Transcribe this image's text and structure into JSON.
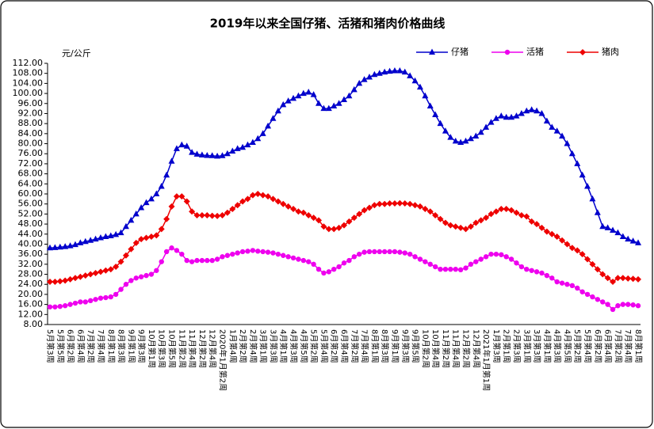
{
  "chart_data": {
    "type": "line",
    "title": "2019年以来全国仔猪、活猪和猪肉价格曲线",
    "y_label": "元/公斤",
    "categories": [
      "5月第3周",
      null,
      "5月第5周",
      null,
      "6月第2周",
      null,
      "6月第4周",
      null,
      "7月第2周",
      null,
      "7月第4周",
      null,
      "8月第1周",
      null,
      "8月第3周",
      null,
      "9月第1周",
      null,
      "9月第3周",
      null,
      "10月第1周",
      null,
      "10月第3周",
      null,
      "10月第5周",
      null,
      "11月第2周",
      null,
      "11月第4周",
      null,
      "12月第2周",
      null,
      "12月第4周",
      null,
      "2020年1月第2周",
      null,
      "1月第4周",
      null,
      "2月第2周",
      null,
      "2月第4周",
      null,
      "3月第1周",
      null,
      "3月第3周",
      null,
      "4月第1周",
      null,
      "4月第3周",
      null,
      "4月第5周",
      null,
      "5月第2周",
      null,
      "5月第4周",
      null,
      "6月第2周",
      null,
      "6月第4周",
      null,
      "7月第2周",
      null,
      "7月第4周",
      null,
      "8月第1周",
      null,
      "8月第3周",
      null,
      "9月第1周",
      null,
      "9月第3周",
      null,
      "9月第5周",
      null,
      "10月第2周",
      null,
      "10月第4周",
      null,
      "11月第2周",
      null,
      "11月第4周",
      null,
      "12月第2周",
      null,
      "12月第4周",
      null,
      "2021年1月第1周",
      null,
      "1月第3周",
      null,
      "2月第1周",
      null,
      "2月第3周",
      null,
      "3月第1周",
      null,
      "3月第3周",
      null,
      "4月第1周",
      null,
      "4月第3周",
      null,
      "4月第5周",
      null,
      "5月第2周",
      null,
      "5月第4周",
      null,
      "6月第2周",
      null,
      "6月第4周",
      null,
      "7月第2周",
      null,
      "7月第4周",
      null,
      "8月第1周"
    ],
    "series": [
      {
        "name": "仔猪",
        "color": "#0000cc",
        "marker": "triangle",
        "values": [
          38.5,
          38.6,
          38.8,
          39.0,
          39.3,
          39.8,
          40.5,
          41.0,
          41.5,
          42.0,
          42.5,
          43.0,
          43.3,
          43.8,
          44.5,
          47,
          49.5,
          52,
          54.5,
          56.5,
          58,
          60,
          63,
          67.5,
          73,
          78,
          79.5,
          79,
          76.5,
          75.8,
          75.5,
          75.3,
          75.2,
          75,
          75.2,
          76,
          77,
          78,
          78.5,
          79.5,
          80.5,
          82,
          84,
          87,
          90,
          93,
          95.5,
          97,
          98,
          99,
          100,
          100.5,
          99.5,
          96,
          94,
          94,
          95,
          96,
          97.5,
          99,
          101.5,
          104,
          105.5,
          106.5,
          107.5,
          108,
          108.5,
          108.8,
          109,
          109,
          108.5,
          107,
          105,
          102.5,
          99,
          95,
          91.5,
          88,
          85,
          82.5,
          81,
          80.5,
          81,
          82,
          83,
          84.5,
          86.5,
          88.5,
          90,
          91,
          90.5,
          90.5,
          91,
          92,
          93,
          93.5,
          93,
          92,
          89,
          86.5,
          85,
          83,
          80,
          76,
          72,
          67.5,
          63,
          58,
          52.5,
          47,
          46.5,
          45.5,
          44.5,
          43,
          42,
          41.2,
          40.5
        ]
      },
      {
        "name": "活猪",
        "color": "#ee00ee",
        "marker": "circle",
        "values": [
          15,
          15,
          15.2,
          15.5,
          16,
          16.5,
          17,
          17,
          17.5,
          18,
          18.5,
          18.7,
          19,
          20,
          22,
          24,
          25.5,
          26.5,
          27,
          27.5,
          28,
          29.5,
          33,
          37,
          38.5,
          37.5,
          36,
          33.5,
          33,
          33.5,
          33.5,
          33.5,
          33.5,
          34,
          35,
          35.5,
          36,
          36.5,
          37,
          37.2,
          37.5,
          37.2,
          37,
          36.8,
          36.5,
          36,
          35.5,
          35,
          34.5,
          34,
          33.5,
          33,
          32,
          30,
          28.5,
          29,
          30,
          31,
          32.5,
          33.5,
          35,
          36,
          36.8,
          37,
          37,
          37,
          37,
          37,
          37,
          36.8,
          36.5,
          36,
          35,
          34,
          33,
          32,
          31,
          30,
          30,
          30,
          30,
          29.8,
          30.5,
          32,
          33,
          34,
          35,
          36,
          36,
          35.8,
          35,
          34,
          32.5,
          31,
          30,
          29.5,
          29,
          28.5,
          27.5,
          26.5,
          25,
          24.5,
          24,
          23.5,
          22.5,
          21,
          20,
          19,
          18,
          17,
          16,
          14,
          15.5,
          16,
          16,
          15.8,
          15.5
        ]
      },
      {
        "name": "猪肉",
        "color": "#ee0000",
        "marker": "diamond",
        "values": [
          25,
          25,
          25.2,
          25.5,
          26,
          26.5,
          27,
          27.5,
          28,
          28.5,
          29,
          29.5,
          30,
          31,
          33,
          35.5,
          38,
          40.5,
          42,
          42.5,
          43,
          43.5,
          46,
          50,
          55,
          59,
          59,
          57,
          53,
          51.5,
          51.5,
          51.5,
          51.3,
          51.2,
          51.5,
          52.5,
          54,
          55.5,
          57,
          58,
          59.5,
          60,
          59.5,
          59,
          58,
          57,
          56,
          55,
          54,
          53,
          52.5,
          51.5,
          50.5,
          49.5,
          47,
          46,
          46,
          46.5,
          47.5,
          49,
          50.5,
          52,
          53.5,
          54.5,
          55.5,
          56,
          56,
          56.2,
          56.2,
          56.3,
          56.2,
          56,
          55.5,
          55,
          54,
          53,
          51.5,
          50,
          48.5,
          47.5,
          47,
          46.5,
          46,
          47,
          48.5,
          49.5,
          50.5,
          52,
          53,
          54,
          54,
          53.5,
          52.5,
          51.5,
          51,
          49,
          48,
          46.5,
          45,
          44,
          43,
          41.5,
          40,
          38.5,
          37.5,
          36,
          34,
          32,
          30,
          28,
          26.5,
          25,
          26.5,
          26.5,
          26.3,
          26.2,
          26
        ]
      }
    ],
    "ylim": [
      8,
      112
    ],
    "yticks": [
      {
        "value": 8,
        "label": "8.00"
      },
      {
        "value": 12,
        "label": "12.00"
      },
      {
        "value": 16,
        "label": "16.00"
      },
      {
        "value": 20,
        "label": "20.00"
      },
      {
        "value": 24,
        "label": "24.00"
      },
      {
        "value": 28,
        "label": "28.00"
      },
      {
        "value": 32,
        "label": "32.00"
      },
      {
        "value": 36,
        "label": "36.00"
      },
      {
        "value": 40,
        "label": "40.00"
      },
      {
        "value": 44,
        "label": "44.00"
      },
      {
        "value": 48,
        "label": "48.00"
      },
      {
        "value": 52,
        "label": "52.00"
      },
      {
        "value": 56,
        "label": "56.00"
      },
      {
        "value": 60,
        "label": "60.00"
      },
      {
        "value": 64,
        "label": "64.00"
      },
      {
        "value": 68,
        "label": "68.00"
      },
      {
        "value": 72,
        "label": "72.00"
      },
      {
        "value": 76,
        "label": "76.00"
      },
      {
        "value": 80,
        "label": "80.00"
      },
      {
        "value": 84,
        "label": "84.00"
      },
      {
        "value": 88,
        "label": "88.00"
      },
      {
        "value": 92,
        "label": "92.00"
      },
      {
        "value": 96,
        "label": "96.00"
      },
      {
        "value": 100,
        "label": "100.00"
      },
      {
        "value": 104,
        "label": "104.00"
      },
      {
        "value": 108,
        "label": "108.00"
      },
      {
        "value": 112,
        "label": "112.00"
      }
    ],
    "grid": false,
    "legend": "top-right"
  }
}
